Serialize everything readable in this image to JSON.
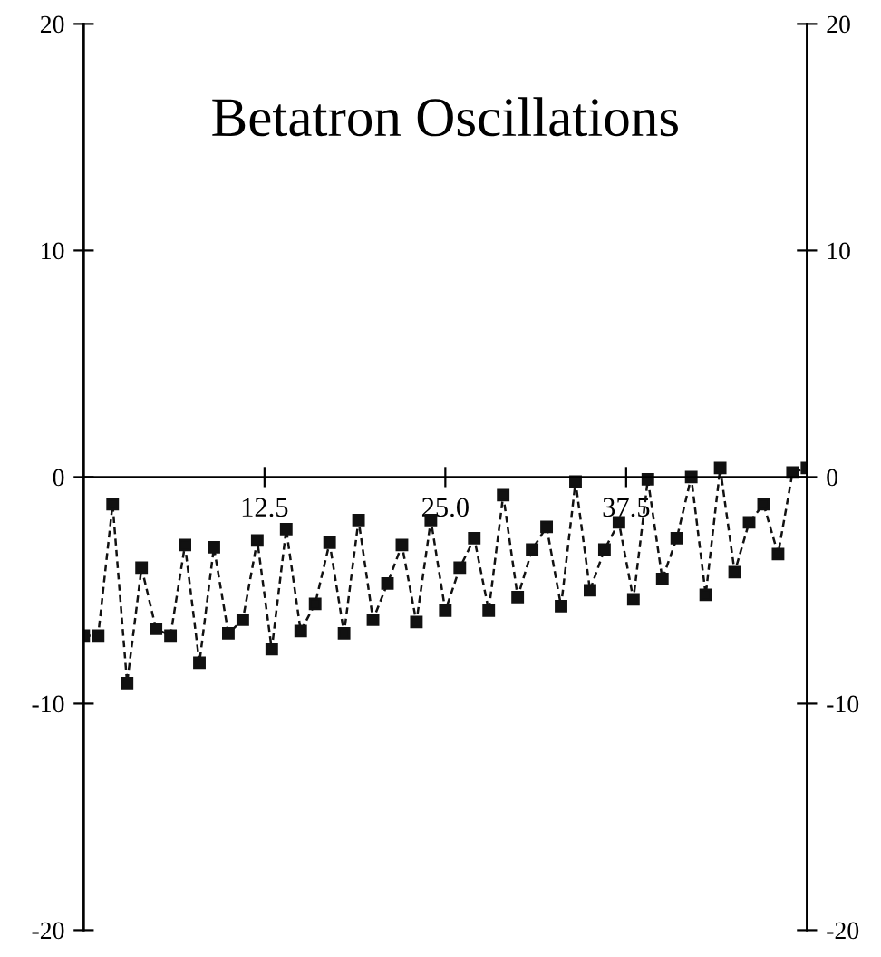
{
  "chart_data": {
    "type": "line",
    "title": "Betatron Oscillations",
    "x": [
      0,
      1,
      2,
      3,
      4,
      5,
      6,
      7,
      8,
      9,
      10,
      11,
      12,
      13,
      14,
      15,
      16,
      17,
      18,
      19,
      20,
      21,
      22,
      23,
      24,
      25,
      26,
      27,
      28,
      29,
      30,
      31,
      32,
      33,
      34,
      35,
      36,
      37,
      38,
      39,
      40,
      41,
      42,
      43,
      44,
      45,
      46,
      47,
      48,
      49,
      50
    ],
    "series": [
      {
        "color": "#111111",
        "values": [
          -7.0,
          -7.0,
          -1.2,
          -9.1,
          -4.0,
          -6.7,
          -7.0,
          -3.0,
          -8.2,
          -3.1,
          -6.9,
          -6.3,
          -2.8,
          -7.6,
          -2.3,
          -6.8,
          -5.6,
          -2.9,
          -6.9,
          -1.9,
          -6.3,
          -4.7,
          -3.0,
          -6.4,
          -1.9,
          -5.9,
          -4.0,
          -2.7,
          -5.9,
          -0.8,
          -5.3,
          -3.2,
          -2.2,
          -5.7,
          -0.2,
          -5.0,
          -3.2,
          -2.0,
          -5.4,
          -0.1,
          -4.5,
          -2.7,
          0.0,
          -5.2,
          0.4,
          -4.2,
          -2.0,
          -1.2,
          -3.4,
          0.2,
          0.4
        ]
      }
    ],
    "xlim": [
      0,
      50
    ],
    "xticks": [
      12.5,
      {
        "value": 25,
        "label": "25.0"
      },
      37.5
    ],
    "ylim": [
      -20,
      20
    ],
    "yticks": [
      -20,
      -10,
      0,
      10,
      20
    ],
    "y2lim": [
      -20,
      20
    ],
    "y2ticks": [
      -20,
      -10,
      0,
      10,
      20
    ],
    "marker": "square",
    "line_style": "dashed",
    "grid": false,
    "legend": false
  }
}
